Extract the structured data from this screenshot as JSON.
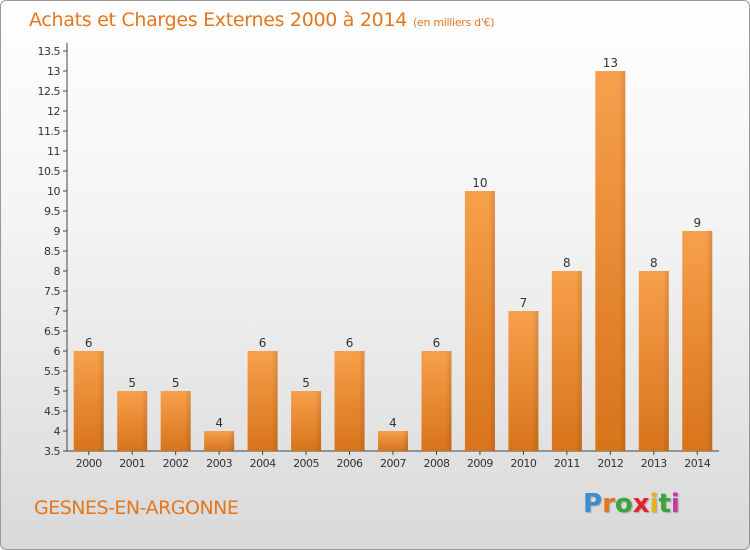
{
  "title": "Achats et Charges Externes 2000 à 2014",
  "unit_note": "(en milliers d'€)",
  "commune": "GESNES-EN-ARGONNE",
  "logo": {
    "letters": [
      "P",
      "r",
      "o",
      "x",
      "i",
      "t",
      "i"
    ],
    "colors": [
      "#3a8fd1",
      "#e4761c",
      "#3aa53a",
      "#e0262b",
      "#e4b21c",
      "#3aa53a",
      "#c43aa5"
    ]
  },
  "colors": {
    "bar": "#f28a2a",
    "bar_dark": "#d66f15",
    "text": "#e4761c"
  },
  "chart_data": {
    "type": "bar",
    "categories": [
      "2000",
      "2001",
      "2002",
      "2003",
      "2004",
      "2005",
      "2006",
      "2007",
      "2008",
      "2009",
      "2010",
      "2011",
      "2012",
      "2013",
      "2014"
    ],
    "values": [
      6,
      5,
      5,
      4,
      6,
      5,
      6,
      4,
      6,
      10,
      7,
      8,
      13,
      8,
      9
    ],
    "data_labels": [
      "6",
      "5",
      "5",
      "4",
      "6",
      "5",
      "6",
      "4",
      "6",
      "10",
      "7",
      "8",
      "13",
      "8",
      "9"
    ],
    "title": "Achats et Charges Externes 2000 à 2014",
    "xlabel": "",
    "ylabel": "",
    "ylim": [
      3.5,
      13.5
    ],
    "yticks": [
      "3.5",
      "4",
      "4.5",
      "5",
      "5.5",
      "6",
      "6.5",
      "7",
      "7.5",
      "8",
      "8.5",
      "9",
      "9.5",
      "10",
      "10.5",
      "11",
      "11.5",
      "12",
      "12.5",
      "13",
      "13.5"
    ],
    "grid": false,
    "legend": "none"
  }
}
